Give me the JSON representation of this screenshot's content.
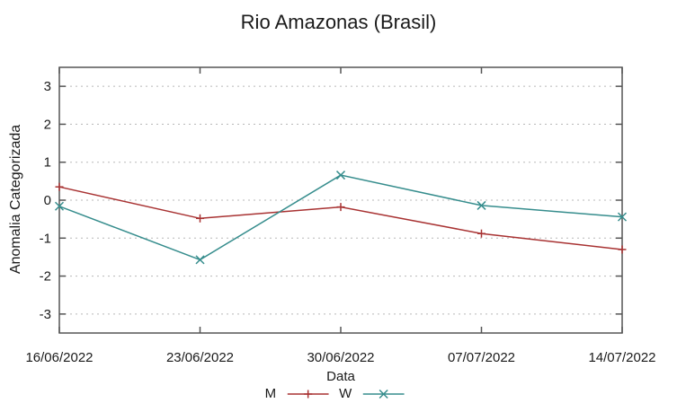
{
  "chart_data": {
    "type": "line",
    "title": "Rio Amazonas (Brasil)",
    "xlabel": "Data",
    "ylabel": "Anomalia Categorizada",
    "categories": [
      "16/06/2022",
      "23/06/2022",
      "30/06/2022",
      "07/07/2022",
      "14/07/2022"
    ],
    "series": [
      {
        "name": "M",
        "marker": "plus",
        "color": "#a83232",
        "values": [
          0.35,
          -0.48,
          -0.18,
          -0.88,
          -1.3
        ]
      },
      {
        "name": "W",
        "marker": "cross",
        "color": "#368d8d",
        "values": [
          -0.16,
          -1.57,
          0.66,
          -0.14,
          -0.44
        ]
      }
    ],
    "ylim": [
      -3.5,
      3.5
    ],
    "yticks": [
      -3,
      -2,
      -1,
      0,
      1,
      2,
      3
    ],
    "grid": "horizontal-dotted",
    "legend_position": "bottom-center",
    "colors": {
      "axis_border": "#555555",
      "gridline": "#b8b8b8",
      "text": "#1a1a1a"
    }
  }
}
